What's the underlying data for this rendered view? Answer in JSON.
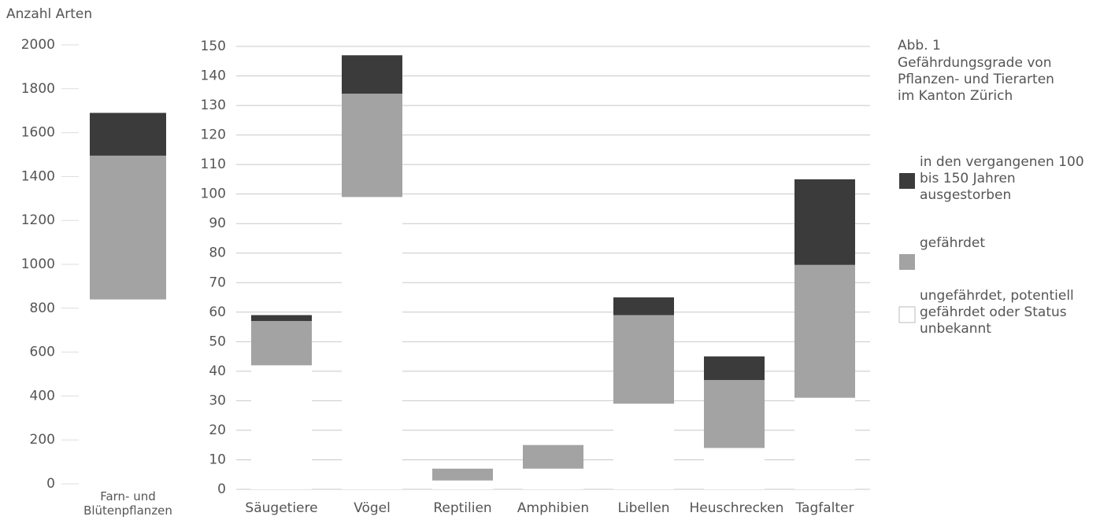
{
  "chart_data": [
    {
      "type": "bar",
      "stacked": true,
      "y_label": "Anzahl Arten",
      "categories": [
        "Farn- und Blütenpflanzen"
      ],
      "series": [
        {
          "color": "#ffffff",
          "values": [
            840
          ]
        },
        {
          "color": "#a3a3a3",
          "values": [
            655
          ]
        },
        {
          "color": "#3b3b3b",
          "values": [
            195
          ]
        }
      ],
      "ylim": [
        0,
        2000
      ],
      "yticks": [
        0,
        200,
        400,
        600,
        800,
        1000,
        1200,
        1400,
        1600,
        1800,
        2000
      ],
      "grid": false
    },
    {
      "type": "bar",
      "stacked": true,
      "title": "Abb. 1",
      "subtitle": "Gefährdungsgrade von Pflanzen- und Tierarten im Kanton Zürich",
      "categories": [
        "Säugetiere",
        "Vögel",
        "Reptilien",
        "Amphibien",
        "Libellen",
        "Heuschrecken",
        "Tagfalter"
      ],
      "series": [
        {
          "name": "ungefährdet, potentiell gefährdet oder Status unbekannt",
          "color": "#ffffff",
          "values": [
            42,
            99,
            3,
            7,
            29,
            14,
            31
          ]
        },
        {
          "name": "gefährdet",
          "color": "#a3a3a3",
          "values": [
            15,
            35,
            4,
            8,
            30,
            23,
            45
          ]
        },
        {
          "name": "in den vergangenen 100 bis 150 Jahren ausgestorben",
          "color": "#3b3b3b",
          "values": [
            2,
            13,
            0,
            0,
            6,
            8,
            29
          ]
        }
      ],
      "ylim": [
        0,
        150
      ],
      "yticks": [
        0,
        10,
        20,
        30,
        40,
        50,
        60,
        70,
        80,
        90,
        100,
        110,
        120,
        130,
        140,
        150
      ],
      "grid": true
    }
  ]
}
